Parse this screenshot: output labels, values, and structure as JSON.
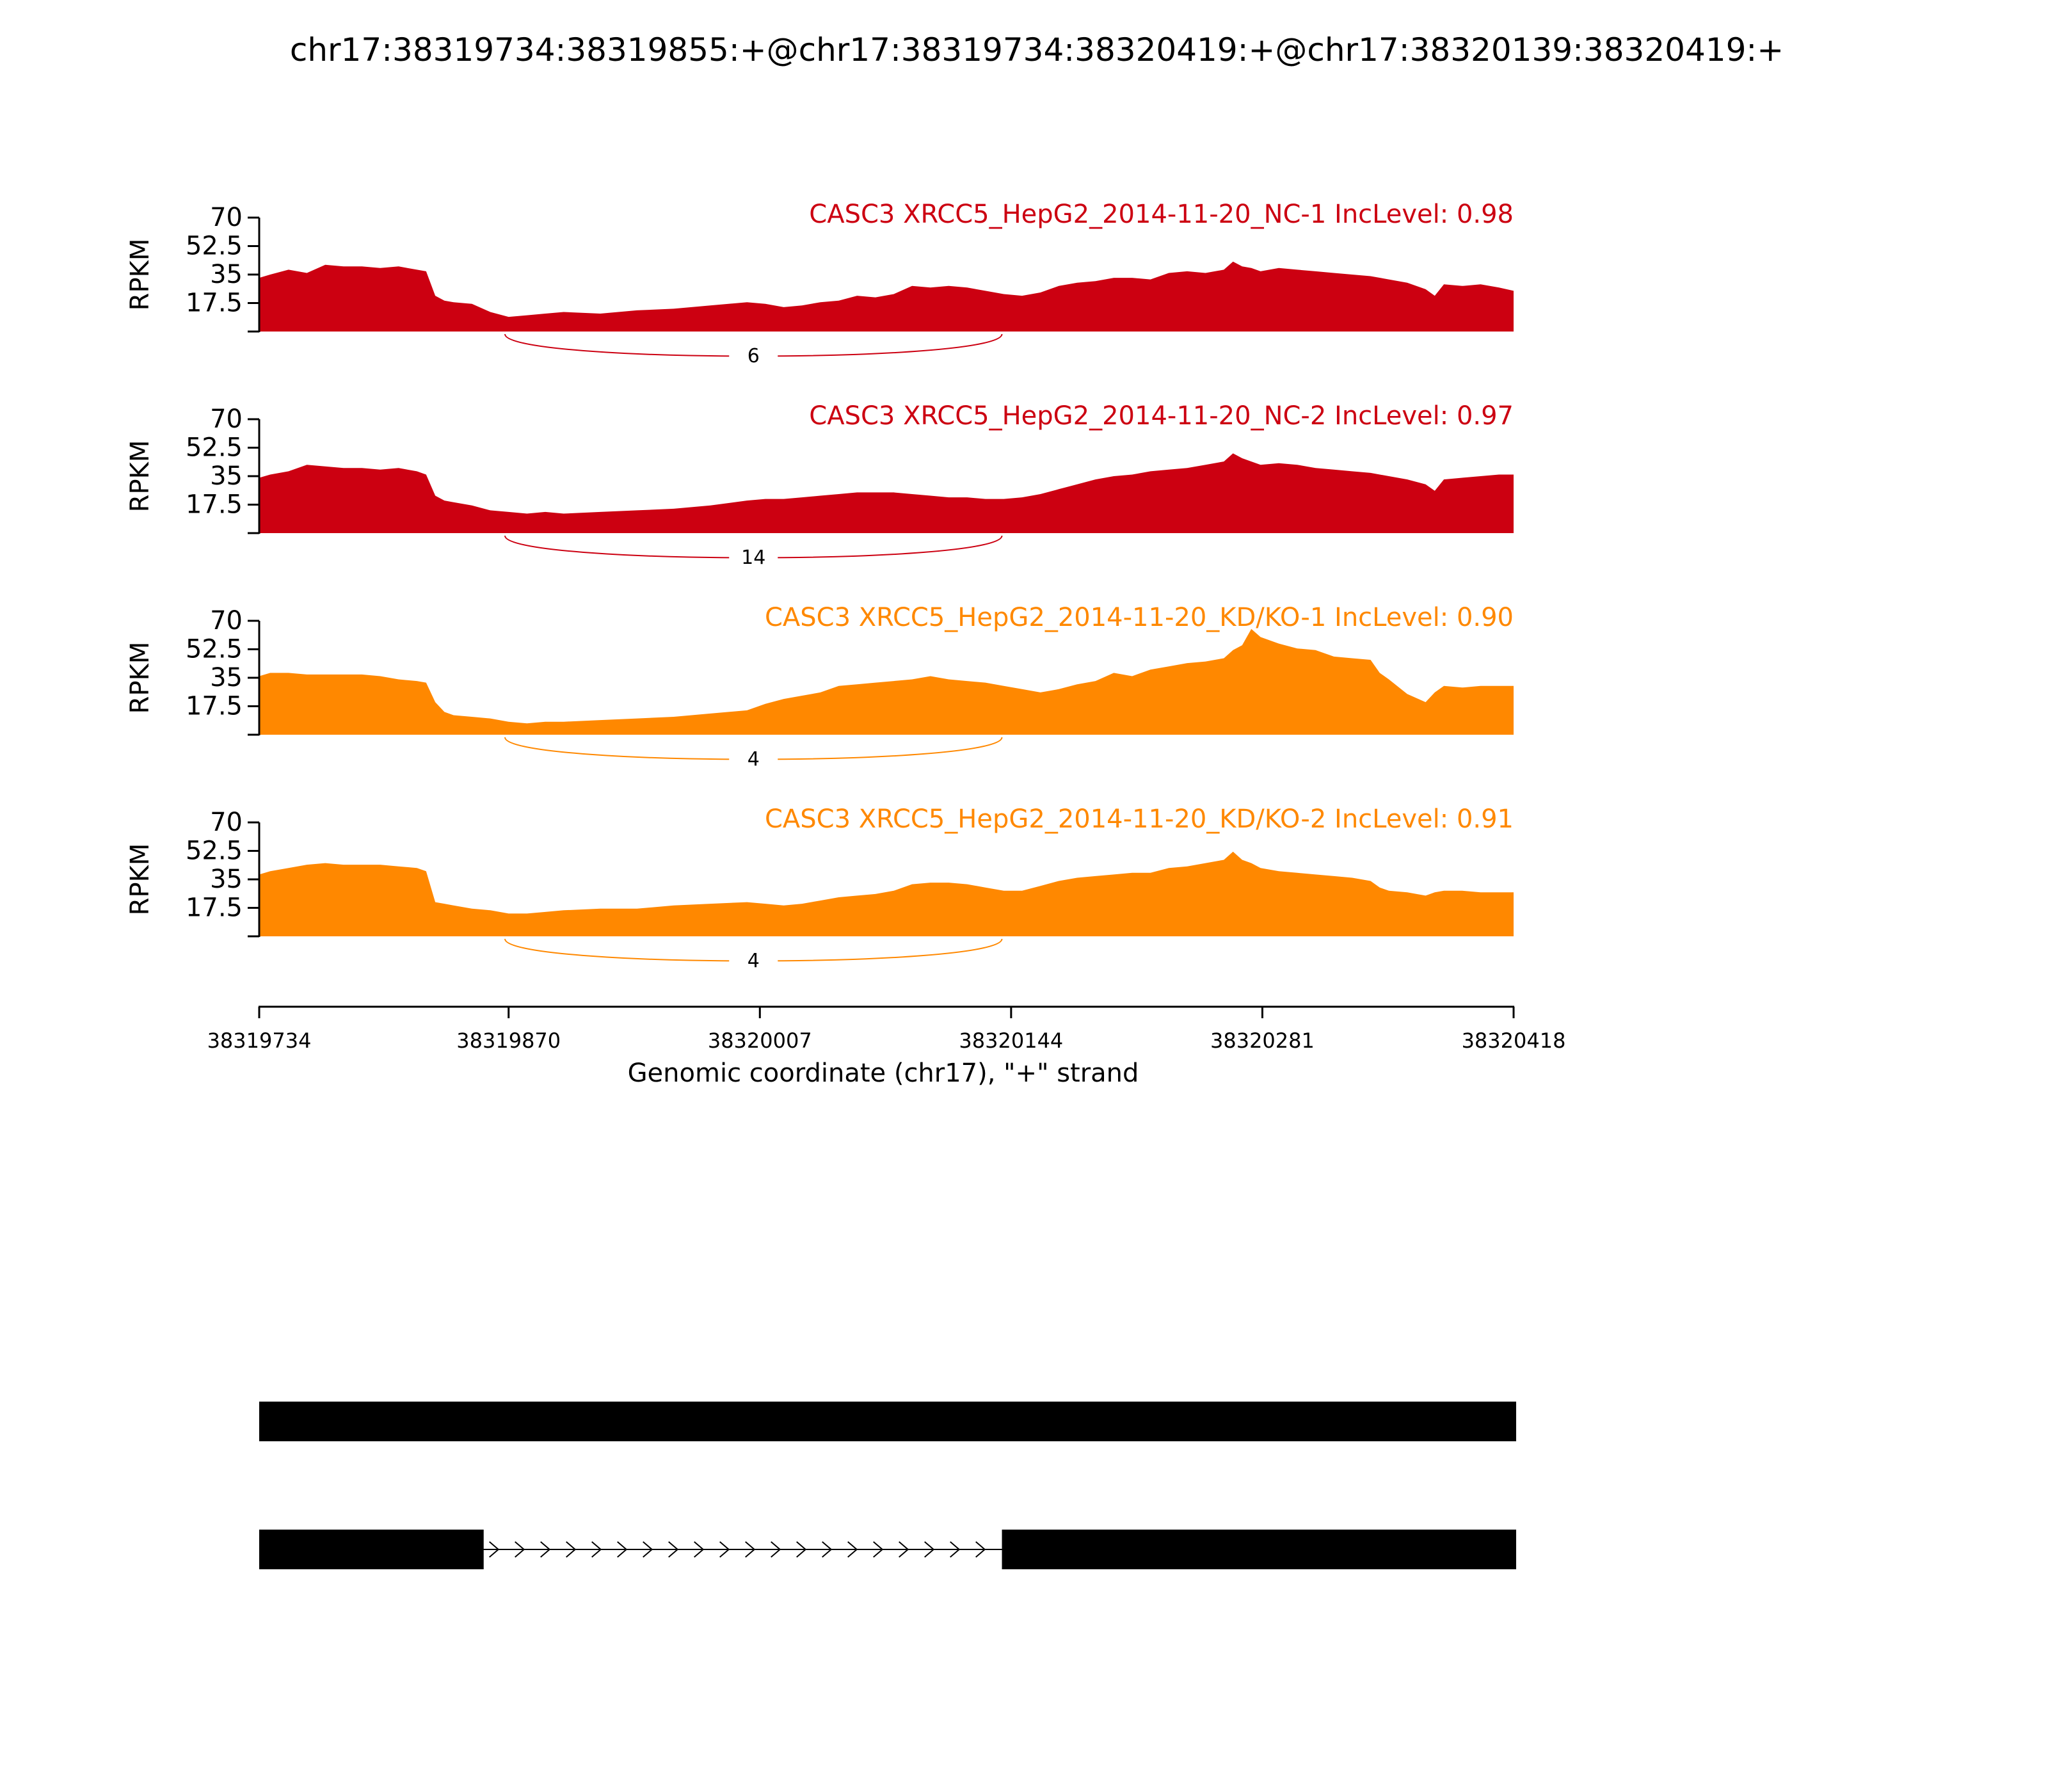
{
  "chart_data": {
    "type": "area",
    "title": "chr17:38319734:38319855:+@chr17:38319734:38320419:+@chr17:38320139:38320419:+",
    "xlabel": "Genomic coordinate (chr17), \"+\" strand",
    "ylabel": "RPKM",
    "xlim": [
      38319734,
      38320418
    ],
    "ylim": [
      0,
      70
    ],
    "x_ticks": [
      38319734,
      38319870,
      38320007,
      38320144,
      38320281,
      38320418
    ],
    "x_tick_labels": [
      "38319734",
      "38319870",
      "38320007",
      "38320144",
      "38320281",
      "38320418"
    ],
    "y_ticks": [
      17.5,
      35,
      52.5,
      70
    ],
    "y_tick_labels": [
      "17.5",
      "35",
      "52.5",
      "70"
    ],
    "grid": false,
    "series": [
      {
        "name": "CASC3 XRCC5_HepG2_2014-11-20_NC-1 IncLevel: 0.98",
        "color": "#cc0011",
        "x": [
          38319734,
          38319740,
          38319750,
          38319760,
          38319770,
          38319780,
          38319790,
          38319800,
          38319810,
          38319820,
          38319825,
          38319830,
          38319835,
          38319840,
          38319850,
          38319860,
          38319870,
          38319880,
          38319890,
          38319900,
          38319920,
          38319940,
          38319960,
          38319980,
          38320000,
          38320010,
          38320020,
          38320030,
          38320040,
          38320050,
          38320060,
          38320070,
          38320080,
          38320090,
          38320100,
          38320110,
          38320120,
          38320130,
          38320140,
          38320150,
          38320160,
          38320170,
          38320180,
          38320190,
          38320200,
          38320210,
          38320220,
          38320230,
          38320240,
          38320250,
          38320260,
          38320265,
          38320270,
          38320275,
          38320280,
          38320290,
          38320300,
          38320310,
          38320320,
          38320330,
          38320340,
          38320350,
          38320360,
          38320370,
          38320375,
          38320380,
          38320390,
          38320400,
          38320410,
          38320418
        ],
        "values": [
          33,
          35,
          38,
          36,
          41,
          40,
          40,
          39,
          40,
          38,
          37,
          22,
          19,
          18,
          17,
          12,
          9,
          10,
          11,
          12,
          11,
          13,
          14,
          16,
          18,
          17,
          15,
          16,
          18,
          19,
          22,
          21,
          23,
          28,
          27,
          28,
          27,
          25,
          23,
          22,
          24,
          28,
          30,
          31,
          33,
          33,
          32,
          36,
          37,
          36,
          38,
          43,
          40,
          39,
          37,
          39,
          38,
          37,
          36,
          35,
          34,
          32,
          30,
          26,
          22,
          29,
          28,
          29,
          27,
          25
        ],
        "junction_label": "6"
      },
      {
        "name": "CASC3 XRCC5_HepG2_2014-11-20_NC-2 IncLevel: 0.97",
        "color": "#cc0011",
        "x": [
          38319734,
          38319740,
          38319750,
          38319760,
          38319770,
          38319780,
          38319790,
          38319800,
          38319810,
          38319820,
          38319825,
          38319830,
          38319835,
          38319840,
          38319850,
          38319860,
          38319870,
          38319880,
          38319890,
          38319900,
          38319920,
          38319940,
          38319960,
          38319980,
          38320000,
          38320010,
          38320020,
          38320030,
          38320040,
          38320050,
          38320060,
          38320070,
          38320080,
          38320090,
          38320100,
          38320110,
          38320120,
          38320130,
          38320140,
          38320150,
          38320160,
          38320170,
          38320180,
          38320190,
          38320200,
          38320210,
          38320220,
          38320230,
          38320240,
          38320250,
          38320260,
          38320265,
          38320270,
          38320275,
          38320280,
          38320290,
          38320300,
          38320310,
          38320320,
          38320330,
          38320340,
          38320350,
          38320360,
          38320370,
          38320375,
          38320380,
          38320390,
          38320400,
          38320410,
          38320418
        ],
        "values": [
          34,
          36,
          38,
          42,
          41,
          40,
          40,
          39,
          40,
          38,
          36,
          23,
          20,
          19,
          17,
          14,
          13,
          12,
          13,
          12,
          13,
          14,
          15,
          17,
          20,
          21,
          21,
          22,
          23,
          24,
          25,
          25,
          25,
          24,
          23,
          22,
          22,
          21,
          21,
          22,
          24,
          27,
          30,
          33,
          35,
          36,
          38,
          39,
          40,
          42,
          44,
          49,
          46,
          44,
          42,
          43,
          42,
          40,
          39,
          38,
          37,
          35,
          33,
          30,
          26,
          33,
          34,
          35,
          36,
          36
        ],
        "junction_label": "14"
      },
      {
        "name": "CASC3 XRCC5_HepG2_2014-11-20_KD/KO-1 IncLevel: 0.90",
        "color": "#ff8800",
        "x": [
          38319734,
          38319740,
          38319750,
          38319760,
          38319770,
          38319780,
          38319790,
          38319800,
          38319810,
          38319820,
          38319825,
          38319830,
          38319835,
          38319840,
          38319850,
          38319860,
          38319870,
          38319880,
          38319890,
          38319900,
          38319920,
          38319940,
          38319960,
          38319980,
          38320000,
          38320010,
          38320020,
          38320030,
          38320040,
          38320050,
          38320060,
          38320070,
          38320080,
          38320090,
          38320100,
          38320110,
          38320120,
          38320130,
          38320140,
          38320150,
          38320160,
          38320170,
          38320180,
          38320190,
          38320200,
          38320210,
          38320220,
          38320230,
          38320240,
          38320250,
          38320260,
          38320265,
          38320270,
          38320275,
          38320280,
          38320290,
          38320300,
          38320310,
          38320320,
          38320330,
          38320340,
          38320345,
          38320350,
          38320360,
          38320370,
          38320375,
          38320380,
          38320390,
          38320400,
          38320410,
          38320418
        ],
        "values": [
          36,
          38,
          38,
          37,
          37,
          37,
          37,
          36,
          34,
          33,
          32,
          20,
          14,
          12,
          11,
          10,
          8,
          7,
          8,
          8,
          9,
          10,
          11,
          13,
          15,
          19,
          22,
          24,
          26,
          30,
          31,
          32,
          33,
          34,
          36,
          34,
          33,
          32,
          30,
          28,
          26,
          28,
          31,
          33,
          38,
          36,
          40,
          42,
          44,
          45,
          47,
          52,
          55,
          65,
          60,
          56,
          53,
          52,
          48,
          47,
          46,
          38,
          34,
          25,
          20,
          26,
          30,
          29,
          30,
          30,
          30
        ],
        "junction_label": "4"
      },
      {
        "name": "CASC3 XRCC5_HepG2_2014-11-20_KD/KO-2 IncLevel: 0.91",
        "color": "#ff8800",
        "x": [
          38319734,
          38319740,
          38319750,
          38319760,
          38319770,
          38319780,
          38319790,
          38319800,
          38319810,
          38319820,
          38319825,
          38319830,
          38319835,
          38319840,
          38319850,
          38319860,
          38319870,
          38319880,
          38319890,
          38319900,
          38319920,
          38319940,
          38319960,
          38319980,
          38320000,
          38320010,
          38320020,
          38320030,
          38320040,
          38320050,
          38320060,
          38320070,
          38320080,
          38320090,
          38320100,
          38320110,
          38320120,
          38320130,
          38320140,
          38320150,
          38320160,
          38320170,
          38320180,
          38320190,
          38320200,
          38320210,
          38320220,
          38320230,
          38320240,
          38320250,
          38320260,
          38320265,
          38320270,
          38320275,
          38320280,
          38320290,
          38320300,
          38320310,
          38320320,
          38320330,
          38320340,
          38320345,
          38320350,
          38320360,
          38320370,
          38320375,
          38320380,
          38320390,
          38320400,
          38320410,
          38320418
        ],
        "values": [
          38,
          40,
          42,
          44,
          45,
          44,
          44,
          44,
          43,
          42,
          40,
          21,
          20,
          19,
          17,
          16,
          14,
          14,
          15,
          16,
          17,
          17,
          19,
          20,
          21,
          20,
          19,
          20,
          22,
          24,
          25,
          26,
          28,
          32,
          33,
          33,
          32,
          30,
          28,
          28,
          31,
          34,
          36,
          37,
          38,
          39,
          39,
          42,
          43,
          45,
          47,
          52,
          47,
          45,
          42,
          40,
          39,
          38,
          37,
          36,
          34,
          30,
          28,
          27,
          25,
          27,
          28,
          28,
          27,
          27,
          27
        ],
        "junction_label": "4"
      }
    ],
    "junction": {
      "start": 38319868,
      "end": 38320139
    },
    "gene_models": [
      {
        "exons": [
          [
            38319734,
            38320418
          ]
        ],
        "introns": []
      },
      {
        "exons": [
          [
            38319734,
            38319855
          ],
          [
            38320139,
            38320418
          ]
        ],
        "introns": [
          [
            38319855,
            38320139
          ]
        ]
      }
    ]
  }
}
